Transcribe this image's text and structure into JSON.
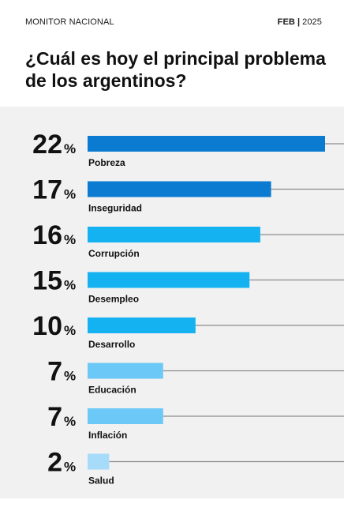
{
  "header": {
    "brand": "MONITOR NACIONAL",
    "month": "FEB",
    "separator": "|",
    "year": "2025"
  },
  "chart_data": {
    "type": "bar",
    "title": "¿Cuál es hoy el principal problema de los argentinos?",
    "unit": "%",
    "categories": [
      "Pobreza",
      "Inseguridad",
      "Corrupción",
      "Desempleo",
      "Desarrollo",
      "Educación",
      "Inflación",
      "Salud"
    ],
    "values": [
      22,
      17,
      16,
      15,
      10,
      7,
      7,
      2
    ],
    "colors": [
      "#0a7bd1",
      "#0a7bd1",
      "#14b2f0",
      "#14b2f0",
      "#14b2f0",
      "#6cc8f7",
      "#6cc8f7",
      "#a6dcfa"
    ],
    "track_color": "#8c8c8c",
    "xlim": [
      0,
      22
    ]
  }
}
